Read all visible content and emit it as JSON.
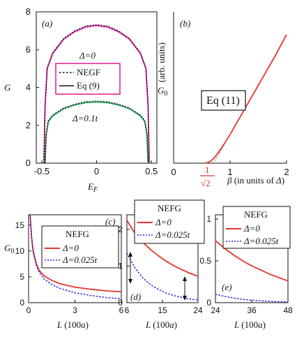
{
  "chart_data": [
    {
      "panel": "(a)",
      "type": "line",
      "xlabel": "E_F",
      "ylabel": "G",
      "xlim": [
        -0.55,
        0.55
      ],
      "ylim": [
        0,
        8
      ],
      "xticks": [
        "-0.5",
        "0",
        "0.5"
      ],
      "yticks": [
        "0",
        "2",
        "4",
        "6",
        "8"
      ],
      "legend": [
        "NEGF",
        "Eq (9)"
      ],
      "annotations": [
        "Δ=0",
        "Δ=0.1t"
      ],
      "series": [
        {
          "name": "Δ=0 Eq (9)",
          "x": [
            -0.48,
            -0.47,
            -0.45,
            -0.4,
            -0.3,
            -0.2,
            -0.1,
            0,
            0.1,
            0.2,
            0.3,
            0.4,
            0.45,
            0.47,
            0.48
          ],
          "y": [
            0,
            3.0,
            5.0,
            5.8,
            6.55,
            6.95,
            7.2,
            7.28,
            7.2,
            6.95,
            6.55,
            5.8,
            5.0,
            3.0,
            0
          ]
        },
        {
          "name": "Δ=0 NEGF",
          "x": [
            -0.48,
            -0.47,
            -0.45,
            -0.4,
            -0.3,
            -0.2,
            -0.1,
            0,
            0.1,
            0.2,
            0.3,
            0.4,
            0.45,
            0.47,
            0.48
          ],
          "y": [
            0,
            3.05,
            5.05,
            5.85,
            6.6,
            7.0,
            7.25,
            7.32,
            7.25,
            7.0,
            6.6,
            5.85,
            5.05,
            3.05,
            0
          ]
        },
        {
          "name": "Δ=0.1t Eq (9)",
          "x": [
            -0.47,
            -0.46,
            -0.44,
            -0.4,
            -0.3,
            -0.2,
            -0.1,
            0,
            0.1,
            0.2,
            0.3,
            0.4,
            0.44,
            0.46,
            0.47
          ],
          "y": [
            0,
            1.5,
            2.2,
            2.5,
            2.88,
            3.08,
            3.2,
            3.24,
            3.2,
            3.08,
            2.88,
            2.5,
            2.2,
            1.5,
            0
          ]
        },
        {
          "name": "Δ=0.1t NEGF",
          "x": [
            -0.47,
            -0.46,
            -0.44,
            -0.4,
            -0.3,
            -0.2,
            -0.1,
            0,
            0.1,
            0.2,
            0.3,
            0.4,
            0.44,
            0.46,
            0.47
          ],
          "y": [
            0,
            1.55,
            2.25,
            2.55,
            2.92,
            3.12,
            3.25,
            3.28,
            3.25,
            3.12,
            2.92,
            2.55,
            2.25,
            1.55,
            0
          ]
        }
      ]
    },
    {
      "panel": "(b)",
      "type": "line",
      "xlabel": "β (in units of Δ)",
      "ylabel": "G₀ (arb. units)",
      "xlim": [
        0,
        2
      ],
      "ylim": [
        0,
        1
      ],
      "xticks": [
        "0",
        "1",
        "2"
      ],
      "xtick_extra": {
        "value": 0.7071,
        "numerator": "1",
        "denominator": "√2"
      },
      "legend": [
        "Eq (11)"
      ],
      "series": [
        {
          "name": "Eq (11)",
          "x": [
            0.55,
            0.6,
            0.65,
            0.7071,
            0.75,
            0.8,
            0.9,
            1.0,
            1.2,
            1.4,
            1.6,
            1.8,
            2.0
          ],
          "y": [
            0,
            0.003,
            0.012,
            0.03,
            0.05,
            0.075,
            0.13,
            0.19,
            0.32,
            0.45,
            0.58,
            0.71,
            0.85
          ]
        },
        {
          "name": "linear",
          "x": [
            0.7071,
            0.75,
            0.8,
            0.85,
            0.9
          ],
          "y": [
            0.0,
            0.028,
            0.06,
            0.092,
            0.124
          ]
        }
      ]
    },
    {
      "panel": "(c)",
      "type": "line",
      "xlabel": "L (100a)",
      "ylabel": "G₀",
      "xlim": [
        0,
        6
      ],
      "ylim": [
        0,
        17
      ],
      "xticks": [
        "0",
        "3",
        "6"
      ],
      "yticks": [
        "0",
        "5",
        "10",
        "15"
      ],
      "legend_title": "NEFG",
      "legend": [
        "Δ=0",
        "Δ=0.025t"
      ],
      "series": [
        {
          "name": "Δ=0",
          "x": [
            0.1,
            0.2,
            0.3,
            0.5,
            0.7,
            1,
            1.5,
            2,
            3,
            4,
            5,
            6
          ],
          "y": [
            17,
            12.5,
            10,
            7.5,
            6.2,
            5.2,
            4.3,
            3.7,
            3.0,
            2.6,
            2.3,
            2.1
          ]
        },
        {
          "name": "Δ=0.025t",
          "x": [
            0.1,
            0.2,
            0.3,
            0.5,
            0.7,
            1,
            1.5,
            2,
            3,
            4,
            5,
            6
          ],
          "y": [
            17,
            12.3,
            9.7,
            7.2,
            5.8,
            4.6,
            3.5,
            2.8,
            1.9,
            1.4,
            1.0,
            0.75
          ]
        }
      ]
    },
    {
      "panel": "(d)",
      "type": "line",
      "xlabel": "L (100a)",
      "xlim": [
        6,
        24
      ],
      "ylim": [
        0,
        2.4
      ],
      "xticks": [
        "6",
        "15",
        "24"
      ],
      "yticks": [
        "0",
        "1",
        "2"
      ],
      "legend_title": "NEFG",
      "legend": [
        "Δ=0",
        "Δ=0.025t"
      ],
      "series": [
        {
          "name": "Δ=0",
          "x": [
            6,
            8,
            10,
            12,
            14,
            16,
            18,
            20,
            22,
            24
          ],
          "y": [
            2.25,
            1.9,
            1.65,
            1.45,
            1.28,
            1.13,
            1.0,
            0.9,
            0.8,
            0.72
          ]
        },
        {
          "name": "Δ=0.025t",
          "x": [
            6,
            8,
            10,
            12,
            14,
            16,
            18,
            20,
            22,
            24
          ],
          "y": [
            1.35,
            0.95,
            0.68,
            0.49,
            0.36,
            0.26,
            0.19,
            0.14,
            0.1,
            0.07
          ]
        }
      ]
    },
    {
      "panel": "(e)",
      "type": "line",
      "xlabel": "L (100a)",
      "xlim": [
        24,
        48
      ],
      "ylim": [
        0,
        1.05
      ],
      "xticks": [
        "24",
        "36",
        "48"
      ],
      "yticks": [
        "0",
        "0.5",
        "1"
      ],
      "legend_title": "NEFG",
      "legend": [
        "Δ=0",
        "Δ=0.025t"
      ],
      "series": [
        {
          "name": "Δ=0",
          "x": [
            24,
            27,
            30,
            33,
            36,
            39,
            42,
            45,
            48
          ],
          "y": [
            0.74,
            0.65,
            0.57,
            0.5,
            0.44,
            0.39,
            0.34,
            0.3,
            0.26
          ]
        },
        {
          "name": "Δ=0.025t",
          "x": [
            24,
            27,
            30,
            33,
            36,
            39,
            42,
            45,
            48
          ],
          "y": [
            0.1,
            0.075,
            0.055,
            0.04,
            0.03,
            0.022,
            0.016,
            0.012,
            0.009
          ]
        }
      ]
    }
  ],
  "colors": {
    "red": "#e8332f",
    "magenta": "#d6189a",
    "green": "#1fa05c",
    "blue": "#2727e6",
    "black": "#111111",
    "grey": "#888888"
  }
}
